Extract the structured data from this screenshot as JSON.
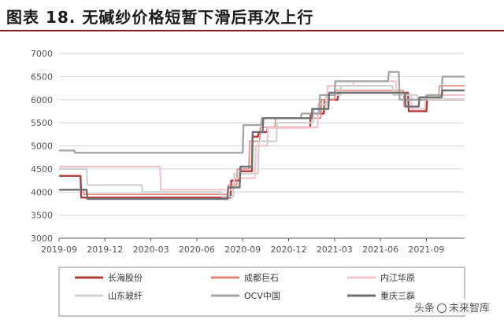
{
  "title": "图表 18. 无碱纱价格短暂下滑后再次上行",
  "watermark": {
    "prefix": "头条",
    "account": "未来智库"
  },
  "chart_data": {
    "type": "line",
    "title": "图表 18. 无碱纱价格短暂下滑后再次上行",
    "xlabel": "",
    "ylabel": "",
    "ylim": [
      3000,
      7000
    ],
    "yticks": [
      3000,
      3500,
      4000,
      4500,
      5000,
      5500,
      6000,
      6500,
      7000
    ],
    "xlim": [
      0,
      26.5
    ],
    "xticks": [
      {
        "x": 0,
        "label": "2019-09"
      },
      {
        "x": 3,
        "label": "2019-12"
      },
      {
        "x": 6,
        "label": "2020-03"
      },
      {
        "x": 9,
        "label": "2020-06"
      },
      {
        "x": 12,
        "label": "2020-09"
      },
      {
        "x": 15,
        "label": "2020-12"
      },
      {
        "x": 18,
        "label": "2021-03"
      },
      {
        "x": 21,
        "label": "2021-06"
      },
      {
        "x": 24,
        "label": "2021-09"
      }
    ],
    "grid": "horizontal",
    "legend_position": "bottom",
    "series": [
      {
        "name": "长海股份",
        "color": "#b03a3a",
        "width": 2.4,
        "points": [
          [
            0,
            4350
          ],
          [
            1.4,
            4350
          ],
          [
            1.45,
            3880
          ],
          [
            11.2,
            3880
          ],
          [
            11.25,
            4250
          ],
          [
            11.8,
            4250
          ],
          [
            11.85,
            4450
          ],
          [
            12.6,
            4450
          ],
          [
            12.65,
            5200
          ],
          [
            13.0,
            5200
          ],
          [
            13.05,
            5300
          ],
          [
            13.6,
            5300
          ],
          [
            13.65,
            5400
          ],
          [
            16.4,
            5400
          ],
          [
            16.45,
            5700
          ],
          [
            17.3,
            5700
          ],
          [
            17.35,
            6000
          ],
          [
            18.2,
            6000
          ],
          [
            18.25,
            6150
          ],
          [
            22.8,
            6150
          ],
          [
            22.85,
            5750
          ],
          [
            24.0,
            5750
          ],
          [
            24.05,
            6000
          ],
          [
            26.5,
            6000
          ]
        ]
      },
      {
        "name": "成都巨石",
        "color": "#e5837b",
        "width": 1.6,
        "points": [
          [
            0,
            4050
          ],
          [
            1.6,
            4050
          ],
          [
            1.65,
            3950
          ],
          [
            11.0,
            3950
          ],
          [
            11.05,
            4150
          ],
          [
            11.6,
            4150
          ],
          [
            11.65,
            4500
          ],
          [
            12.4,
            4500
          ],
          [
            12.45,
            5100
          ],
          [
            13.1,
            5100
          ],
          [
            13.15,
            5400
          ],
          [
            14.1,
            5400
          ],
          [
            14.15,
            5600
          ],
          [
            17.1,
            5600
          ],
          [
            17.15,
            6000
          ],
          [
            18.0,
            6000
          ],
          [
            18.05,
            6200
          ],
          [
            22.5,
            6200
          ],
          [
            22.55,
            5850
          ],
          [
            23.5,
            5850
          ],
          [
            23.55,
            6050
          ],
          [
            24.8,
            6050
          ],
          [
            24.85,
            6300
          ],
          [
            26.5,
            6300
          ]
        ]
      },
      {
        "name": "内江华原",
        "color": "#f2c4c8",
        "width": 2.2,
        "points": [
          [
            0,
            4550
          ],
          [
            6.6,
            4550
          ],
          [
            6.65,
            4050
          ],
          [
            11.4,
            4050
          ],
          [
            11.45,
            4300
          ],
          [
            12.8,
            4300
          ],
          [
            12.85,
            5000
          ],
          [
            13.6,
            5000
          ],
          [
            13.65,
            5400
          ],
          [
            16.9,
            5400
          ],
          [
            16.95,
            5900
          ],
          [
            17.5,
            5900
          ],
          [
            17.55,
            6300
          ],
          [
            19.2,
            6300
          ],
          [
            19.25,
            6400
          ],
          [
            22.0,
            6400
          ],
          [
            22.05,
            6100
          ],
          [
            23.0,
            6100
          ],
          [
            23.05,
            5800
          ],
          [
            23.9,
            5800
          ],
          [
            23.95,
            6100
          ],
          [
            26.5,
            6100
          ]
        ]
      },
      {
        "name": "山东玻纤",
        "color": "#cfcfcf",
        "width": 2.2,
        "points": [
          [
            0,
            4500
          ],
          [
            1.8,
            4500
          ],
          [
            1.85,
            4150
          ],
          [
            5.4,
            4150
          ],
          [
            5.45,
            4000
          ],
          [
            10.6,
            4000
          ],
          [
            10.65,
            3900
          ],
          [
            11.4,
            3900
          ],
          [
            11.45,
            4400
          ],
          [
            13.0,
            4400
          ],
          [
            13.05,
            5100
          ],
          [
            14.2,
            5100
          ],
          [
            14.25,
            5500
          ],
          [
            16.6,
            5500
          ],
          [
            16.65,
            5800
          ],
          [
            17.4,
            5800
          ],
          [
            17.45,
            6100
          ],
          [
            18.4,
            6100
          ],
          [
            18.45,
            6300
          ],
          [
            21.8,
            6300
          ],
          [
            21.85,
            6100
          ],
          [
            23.4,
            6100
          ],
          [
            23.45,
            6000
          ],
          [
            26.5,
            6000
          ]
        ]
      },
      {
        "name": "OCV中国",
        "color": "#a6a6a6",
        "width": 2.4,
        "points": [
          [
            0,
            4900
          ],
          [
            1.0,
            4900
          ],
          [
            1.05,
            4850
          ],
          [
            12.0,
            4850
          ],
          [
            12.05,
            5450
          ],
          [
            13.2,
            5450
          ],
          [
            13.25,
            5600
          ],
          [
            15.8,
            5600
          ],
          [
            15.85,
            5700
          ],
          [
            17.0,
            5700
          ],
          [
            17.05,
            6100
          ],
          [
            18.0,
            6100
          ],
          [
            18.05,
            6400
          ],
          [
            21.5,
            6400
          ],
          [
            21.55,
            6600
          ],
          [
            22.2,
            6600
          ],
          [
            22.25,
            6000
          ],
          [
            24.0,
            6000
          ],
          [
            24.05,
            6100
          ],
          [
            25.0,
            6100
          ],
          [
            25.05,
            6500
          ],
          [
            26.5,
            6500
          ]
        ]
      },
      {
        "name": "重庆三磊",
        "color": "#707070",
        "width": 2.4,
        "points": [
          [
            0,
            4050
          ],
          [
            1.8,
            4050
          ],
          [
            1.85,
            3850
          ],
          [
            11.0,
            3850
          ],
          [
            11.05,
            4100
          ],
          [
            11.8,
            4100
          ],
          [
            11.85,
            4550
          ],
          [
            12.6,
            4550
          ],
          [
            12.65,
            5300
          ],
          [
            13.3,
            5300
          ],
          [
            13.35,
            5600
          ],
          [
            16.5,
            5600
          ],
          [
            16.55,
            5800
          ],
          [
            17.6,
            5800
          ],
          [
            17.65,
            6150
          ],
          [
            22.6,
            6150
          ],
          [
            22.65,
            5850
          ],
          [
            23.5,
            5850
          ],
          [
            23.55,
            6050
          ],
          [
            25.0,
            6050
          ],
          [
            25.05,
            6200
          ],
          [
            26.5,
            6200
          ]
        ]
      }
    ]
  }
}
